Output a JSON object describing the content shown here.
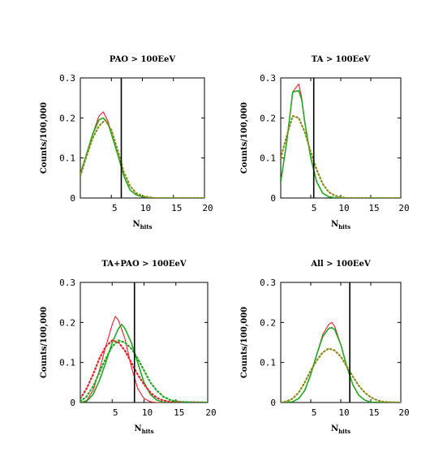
{
  "colors": {
    "red": "#e8202a",
    "green": "#23a823",
    "olive": "#8a8a18",
    "black": "#000000"
  },
  "chart_data": [
    {
      "type": "line",
      "title": "PAO > 100EeV",
      "xlabel": "N",
      "xlabel_sub": "hits",
      "ylabel": "Counts/100,000",
      "xlim": [
        0,
        20
      ],
      "ylim": [
        0,
        0.3
      ],
      "xticks": [
        "5",
        "10",
        "15",
        "20"
      ],
      "yticks": [
        "0",
        "0.1",
        "0.2",
        "0.3"
      ],
      "cut_x": 6.6,
      "series": [
        {
          "color": "red",
          "style": "solid",
          "x": [
            0,
            1,
            2,
            3,
            3.7,
            4.5,
            5,
            6,
            7,
            8,
            9,
            10,
            11,
            12,
            20
          ],
          "y": [
            0.06,
            0.11,
            0.16,
            0.205,
            0.215,
            0.19,
            0.16,
            0.11,
            0.055,
            0.02,
            0.008,
            0.003,
            0.001,
            0,
            0
          ]
        },
        {
          "color": "green",
          "style": "solid",
          "x": [
            0,
            1,
            2,
            3,
            3.7,
            4.5,
            5,
            6,
            7,
            8,
            9,
            10,
            11,
            12,
            20
          ],
          "y": [
            0.06,
            0.11,
            0.16,
            0.195,
            0.2,
            0.185,
            0.16,
            0.11,
            0.055,
            0.02,
            0.008,
            0.003,
            0.001,
            0,
            0
          ]
        },
        {
          "color": "olive",
          "style": "dotted",
          "x": [
            0,
            1,
            2,
            3,
            4,
            5,
            6,
            7,
            8,
            9,
            10,
            11,
            12,
            20
          ],
          "y": [
            0.055,
            0.105,
            0.15,
            0.18,
            0.195,
            0.17,
            0.12,
            0.065,
            0.03,
            0.012,
            0.005,
            0.002,
            0,
            0
          ]
        }
      ]
    },
    {
      "type": "line",
      "title": "TA > 100EeV",
      "xlabel": "N",
      "xlabel_sub": "hits",
      "ylabel": "Counts/100,000",
      "xlim": [
        0,
        20
      ],
      "ylim": [
        0,
        0.3
      ],
      "xticks": [
        "5",
        "10",
        "15",
        "20"
      ],
      "yticks": [
        "0",
        "0.1",
        "0.2",
        "0.3"
      ],
      "cut_x": 5.5,
      "series": [
        {
          "color": "red",
          "style": "solid",
          "x": [
            0,
            1,
            2,
            3,
            3.5,
            4,
            5,
            6,
            7,
            8,
            9,
            10,
            20
          ],
          "y": [
            0.04,
            0.14,
            0.265,
            0.285,
            0.25,
            0.19,
            0.1,
            0.04,
            0.012,
            0.003,
            0.001,
            0,
            0
          ]
        },
        {
          "color": "green",
          "style": "solid",
          "x": [
            0,
            1,
            2,
            3,
            3.5,
            4,
            5,
            6,
            7,
            8,
            9,
            10,
            20
          ],
          "y": [
            0.04,
            0.14,
            0.265,
            0.268,
            0.245,
            0.19,
            0.1,
            0.04,
            0.012,
            0.003,
            0.001,
            0,
            0
          ]
        },
        {
          "color": "olive",
          "style": "dotted",
          "x": [
            0,
            1,
            2,
            3,
            4,
            5,
            6,
            7,
            8,
            9,
            10,
            11,
            20
          ],
          "y": [
            0.1,
            0.155,
            0.205,
            0.2,
            0.165,
            0.115,
            0.07,
            0.035,
            0.015,
            0.006,
            0.002,
            0,
            0
          ]
        }
      ]
    },
    {
      "type": "line",
      "title": "TA+PAO > 100EeV",
      "xlabel": "N",
      "xlabel_sub": "hits",
      "ylabel": "Counts/100,000",
      "xlim": [
        0,
        20
      ],
      "ylim": [
        0,
        0.3
      ],
      "xticks": [
        "5",
        "10",
        "15",
        "20"
      ],
      "yticks": [
        "0",
        "0.1",
        "0.2",
        "0.3"
      ],
      "cut_x": 8.5,
      "series": [
        {
          "color": "red",
          "style": "solid",
          "x": [
            0,
            1,
            2,
            3,
            4,
            5,
            5.5,
            6,
            7,
            8,
            9,
            10,
            11,
            12,
            20
          ],
          "y": [
            0,
            0.005,
            0.03,
            0.08,
            0.14,
            0.195,
            0.215,
            0.205,
            0.16,
            0.09,
            0.035,
            0.01,
            0.002,
            0,
            0
          ]
        },
        {
          "color": "green",
          "style": "solid",
          "x": [
            0,
            1,
            2,
            3,
            4,
            5,
            6,
            6.5,
            7,
            8,
            9,
            10,
            11,
            12,
            13,
            20
          ],
          "y": [
            0,
            0.003,
            0.02,
            0.055,
            0.1,
            0.15,
            0.185,
            0.195,
            0.185,
            0.15,
            0.1,
            0.05,
            0.02,
            0.006,
            0.001,
            0
          ]
        },
        {
          "color": "red",
          "style": "dotted",
          "x": [
            0,
            1,
            2,
            3,
            4,
            5,
            6,
            7,
            8,
            9,
            10,
            11,
            12,
            13,
            14,
            20
          ],
          "y": [
            0.01,
            0.035,
            0.07,
            0.11,
            0.14,
            0.155,
            0.15,
            0.13,
            0.1,
            0.07,
            0.045,
            0.025,
            0.012,
            0.005,
            0.002,
            0
          ]
        },
        {
          "color": "green",
          "style": "dotted",
          "x": [
            0,
            1,
            2,
            3,
            4,
            5,
            6,
            7,
            8,
            9,
            10,
            11,
            12,
            13,
            14,
            15,
            16,
            20
          ],
          "y": [
            0.003,
            0.015,
            0.04,
            0.075,
            0.11,
            0.14,
            0.155,
            0.15,
            0.135,
            0.11,
            0.08,
            0.05,
            0.03,
            0.015,
            0.007,
            0.003,
            0.001,
            0
          ]
        }
      ]
    },
    {
      "type": "line",
      "title": "All > 100EeV",
      "xlabel": "N",
      "xlabel_sub": "hits",
      "ylabel": "Counts/100,000",
      "xlim": [
        0,
        20
      ],
      "ylim": [
        0,
        0.3
      ],
      "xticks": [
        "5",
        "10",
        "15",
        "20"
      ],
      "yticks": [
        "0",
        "0.1",
        "0.2",
        "0.3"
      ],
      "cut_x": 11.5,
      "series": [
        {
          "color": "red",
          "style": "solid",
          "x": [
            0,
            2,
            3,
            4,
            5,
            6,
            7,
            8,
            8.5,
            9,
            10,
            11,
            12,
            13,
            14,
            15,
            20
          ],
          "y": [
            0,
            0.002,
            0.01,
            0.03,
            0.07,
            0.12,
            0.17,
            0.195,
            0.2,
            0.19,
            0.145,
            0.09,
            0.045,
            0.018,
            0.006,
            0.001,
            0
          ]
        },
        {
          "color": "green",
          "style": "solid",
          "x": [
            0,
            2,
            3,
            4,
            5,
            6,
            7,
            8,
            8.5,
            9,
            10,
            11,
            12,
            13,
            14,
            15,
            20
          ],
          "y": [
            0,
            0.002,
            0.01,
            0.03,
            0.07,
            0.12,
            0.165,
            0.185,
            0.187,
            0.182,
            0.145,
            0.09,
            0.045,
            0.018,
            0.006,
            0.001,
            0
          ]
        },
        {
          "color": "olive",
          "style": "dotted",
          "x": [
            0,
            1,
            2,
            3,
            4,
            5,
            6,
            7,
            8,
            9,
            10,
            11,
            12,
            13,
            14,
            15,
            16,
            17,
            18,
            20
          ],
          "y": [
            0,
            0.003,
            0.01,
            0.025,
            0.05,
            0.08,
            0.105,
            0.125,
            0.135,
            0.13,
            0.115,
            0.09,
            0.065,
            0.042,
            0.025,
            0.013,
            0.006,
            0.002,
            0.001,
            0
          ]
        }
      ]
    }
  ]
}
